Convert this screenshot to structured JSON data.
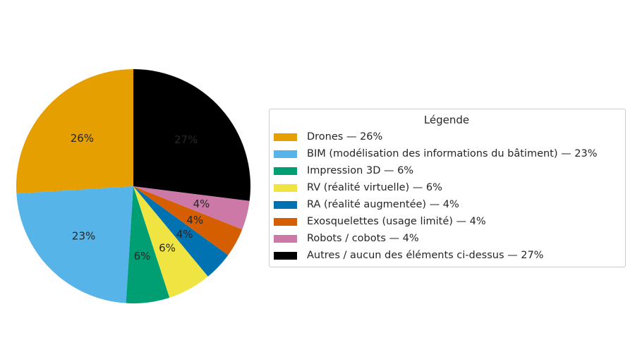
{
  "figure": {
    "background": "#ffffff"
  },
  "chart_data": {
    "type": "pie",
    "title": "",
    "legend_title": "Légende",
    "legend_position": "right",
    "start_angle_deg": 90,
    "direction": "counterclockwise",
    "pct_distance": 0.6,
    "pct_label_color": "#262626",
    "legend_border_color": "#cccccc",
    "legend_background": "#ffffff",
    "slices": [
      {
        "label": "Drones",
        "value": 26,
        "pct_label": "26%",
        "legend_label": "Drones — 26%",
        "color": "#E69F00"
      },
      {
        "label": "BIM (modélisation des informations du bâtiment)",
        "value": 23,
        "pct_label": "23%",
        "legend_label": "BIM (modélisation des informations du bâtiment) — 23%",
        "color": "#56B4E9"
      },
      {
        "label": "Impression 3D",
        "value": 6,
        "pct_label": "6%",
        "legend_label": "Impression 3D — 6%",
        "color": "#009E73"
      },
      {
        "label": "RV (réalité virtuelle)",
        "value": 6,
        "pct_label": "6%",
        "legend_label": "RV (réalité virtuelle) — 6%",
        "color": "#F0E442"
      },
      {
        "label": "RA (réalité augmentée)",
        "value": 4,
        "pct_label": "4%",
        "legend_label": "RA (réalité augmentée) — 4%",
        "color": "#0072B2"
      },
      {
        "label": "Exosquelettes (usage limité)",
        "value": 4,
        "pct_label": "4%",
        "legend_label": "Exosquelettes (usage limité) — 4%",
        "color": "#D55E00"
      },
      {
        "label": "Robots / cobots",
        "value": 4,
        "pct_label": "4%",
        "legend_label": "Robots / cobots — 4%",
        "color": "#CC79A7"
      },
      {
        "label": "Autres / aucun des éléments ci-dessus",
        "value": 27,
        "pct_label": "27%",
        "legend_label": "Autres / aucun des éléments ci-dessus — 27%",
        "color": "#000000"
      }
    ]
  }
}
